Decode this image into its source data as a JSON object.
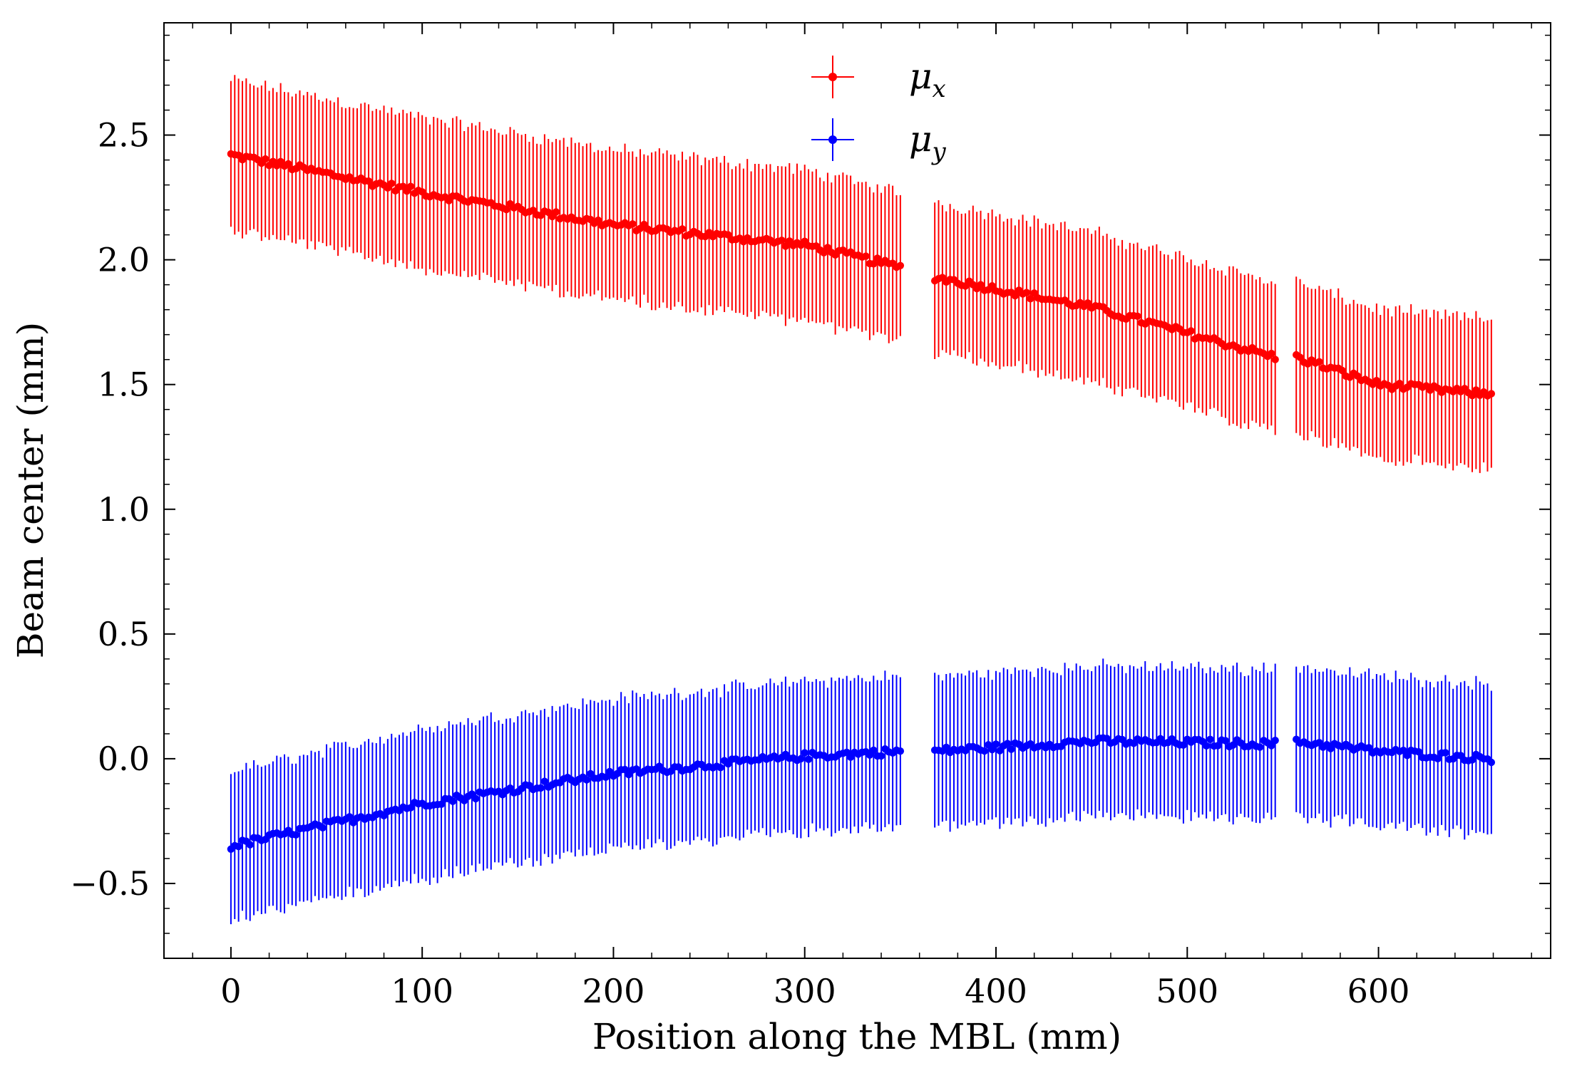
{
  "chart_data": {
    "type": "scatter",
    "title": "",
    "xlabel": "Position along the MBL (mm)",
    "ylabel": "Beam center (mm)",
    "xlim": [
      -35,
      690
    ],
    "ylim": [
      -0.8,
      2.95
    ],
    "x_ticks": [
      0,
      100,
      200,
      300,
      400,
      500,
      600
    ],
    "x_tick_labels": [
      "0",
      "100",
      "200",
      "300",
      "400",
      "500",
      "600"
    ],
    "y_ticks": [
      -0.5,
      0.0,
      0.5,
      1.0,
      1.5,
      2.0,
      2.5
    ],
    "y_tick_labels": [
      "−0.5",
      "0.0",
      "0.5",
      "1.0",
      "1.5",
      "2.0",
      "2.5"
    ],
    "grid": false,
    "legend_position": "top-center",
    "x_segments": [
      [
        0,
        350
      ],
      [
        368,
        546
      ],
      [
        557,
        659
      ]
    ],
    "x_step": 2,
    "series": [
      {
        "name": "μ",
        "subscript": "x",
        "color": "#ff0000",
        "anchors": [
          [
            0,
            2.42
          ],
          [
            100,
            2.27
          ],
          [
            200,
            2.14
          ],
          [
            300,
            2.06
          ],
          [
            350,
            1.97
          ],
          [
            368,
            1.93
          ],
          [
            450,
            1.81
          ],
          [
            546,
            1.61
          ],
          [
            557,
            1.61
          ],
          [
            600,
            1.5
          ],
          [
            659,
            1.46
          ]
        ],
        "error": 0.3
      },
      {
        "name": "μ",
        "subscript": "y",
        "color": "#0000ff",
        "anchors": [
          [
            0,
            -0.35
          ],
          [
            100,
            -0.18
          ],
          [
            200,
            -0.06
          ],
          [
            300,
            0.01
          ],
          [
            350,
            0.03
          ],
          [
            368,
            0.03
          ],
          [
            450,
            0.07
          ],
          [
            546,
            0.06
          ],
          [
            557,
            0.07
          ],
          [
            600,
            0.03
          ],
          [
            659,
            0.0
          ]
        ],
        "error": 0.3
      }
    ]
  }
}
